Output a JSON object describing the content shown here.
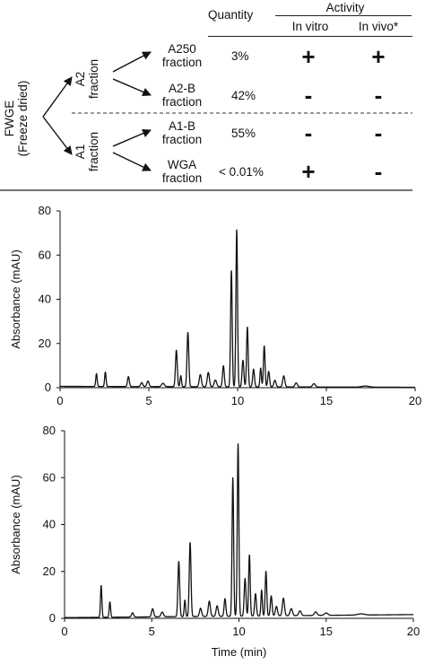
{
  "table": {
    "activity_header": "Activity",
    "quantity_header": "Quantity",
    "in_vitro_header": "In vitro",
    "in_vivo_header": "In vivo*",
    "root_label_line1": "FWGE",
    "root_label_line2": "(Freeze dried)",
    "branch_a2_line1": "A2",
    "branch_a2_line2": "fraction",
    "branch_a1_line1": "A1",
    "branch_a1_line2": "fraction",
    "rows": [
      {
        "line1": "A250",
        "line2": "fraction",
        "quantity": "3%",
        "in_vitro": "+",
        "in_vivo": "+"
      },
      {
        "line1": "A2-B",
        "line2": "fraction",
        "quantity": "42%",
        "in_vitro": "-",
        "in_vivo": "-"
      },
      {
        "line1": "A1-B",
        "line2": "fraction",
        "quantity": "55%",
        "in_vitro": "-",
        "in_vivo": "-"
      },
      {
        "line1": "WGA",
        "line2": "fraction",
        "quantity": "< 0.01%",
        "in_vitro": "+",
        "in_vivo": "-"
      }
    ]
  },
  "chart_data": [
    {
      "type": "line",
      "ylabel": "Absorbance (mAU)",
      "xlabel": "",
      "xlim": [
        0,
        20
      ],
      "ylim": [
        0,
        80
      ],
      "xticks": [
        0,
        5,
        10,
        15,
        20
      ],
      "yticks": [
        0,
        20,
        40,
        60,
        80
      ],
      "baseline": [
        [
          0,
          0.6
        ],
        [
          20,
          0.2
        ]
      ],
      "peaks": [
        {
          "x": 2.05,
          "h": 5.8,
          "w": 0.04
        },
        {
          "x": 2.55,
          "h": 6.5,
          "w": 0.04
        },
        {
          "x": 3.85,
          "h": 4.5,
          "w": 0.05
        },
        {
          "x": 4.6,
          "h": 1.8,
          "w": 0.06
        },
        {
          "x": 4.95,
          "h": 2.5,
          "w": 0.06
        },
        {
          "x": 5.8,
          "h": 1.5,
          "w": 0.08
        },
        {
          "x": 6.55,
          "h": 16.5,
          "w": 0.05
        },
        {
          "x": 6.8,
          "h": 5.0,
          "w": 0.04
        },
        {
          "x": 7.2,
          "h": 24.5,
          "w": 0.05
        },
        {
          "x": 7.9,
          "h": 5.5,
          "w": 0.06
        },
        {
          "x": 8.35,
          "h": 6.5,
          "w": 0.06
        },
        {
          "x": 8.75,
          "h": 3.0,
          "w": 0.07
        },
        {
          "x": 9.2,
          "h": 9.5,
          "w": 0.05
        },
        {
          "x": 9.65,
          "h": 52.5,
          "w": 0.045
        },
        {
          "x": 9.95,
          "h": 71.0,
          "w": 0.045
        },
        {
          "x": 10.3,
          "h": 12.0,
          "w": 0.05
        },
        {
          "x": 10.55,
          "h": 27.0,
          "w": 0.045
        },
        {
          "x": 10.9,
          "h": 8.0,
          "w": 0.05
        },
        {
          "x": 11.3,
          "h": 8.5,
          "w": 0.04
        },
        {
          "x": 11.5,
          "h": 18.5,
          "w": 0.045
        },
        {
          "x": 11.75,
          "h": 7.0,
          "w": 0.05
        },
        {
          "x": 12.1,
          "h": 3.0,
          "w": 0.06
        },
        {
          "x": 12.6,
          "h": 5.0,
          "w": 0.06
        },
        {
          "x": 13.3,
          "h": 1.8,
          "w": 0.07
        },
        {
          "x": 14.3,
          "h": 1.5,
          "w": 0.08
        },
        {
          "x": 17.2,
          "h": 0.5,
          "w": 0.2
        }
      ]
    },
    {
      "type": "line",
      "ylabel": "Absorbance (mAU)",
      "xlabel": "Time (min)",
      "xlim": [
        0,
        20
      ],
      "ylim": [
        0,
        80
      ],
      "xticks": [
        0,
        5,
        10,
        15,
        20
      ],
      "yticks": [
        0,
        20,
        40,
        60,
        80
      ],
      "baseline": [
        [
          0,
          0.3
        ],
        [
          20,
          1.6
        ]
      ],
      "peaks": [
        {
          "x": 2.1,
          "h": 13.5,
          "w": 0.04
        },
        {
          "x": 2.6,
          "h": 6.5,
          "w": 0.04
        },
        {
          "x": 3.9,
          "h": 1.8,
          "w": 0.06
        },
        {
          "x": 5.05,
          "h": 3.5,
          "w": 0.06
        },
        {
          "x": 5.6,
          "h": 2.0,
          "w": 0.07
        },
        {
          "x": 6.55,
          "h": 23.5,
          "w": 0.05
        },
        {
          "x": 6.9,
          "h": 7.0,
          "w": 0.04
        },
        {
          "x": 7.2,
          "h": 31.5,
          "w": 0.05
        },
        {
          "x": 7.8,
          "h": 3.5,
          "w": 0.06
        },
        {
          "x": 8.3,
          "h": 6.5,
          "w": 0.06
        },
        {
          "x": 8.75,
          "h": 4.5,
          "w": 0.06
        },
        {
          "x": 9.2,
          "h": 7.5,
          "w": 0.05
        },
        {
          "x": 9.65,
          "h": 59.0,
          "w": 0.045
        },
        {
          "x": 9.95,
          "h": 73.5,
          "w": 0.045
        },
        {
          "x": 10.35,
          "h": 16.0,
          "w": 0.05
        },
        {
          "x": 10.6,
          "h": 26.0,
          "w": 0.045
        },
        {
          "x": 10.95,
          "h": 9.5,
          "w": 0.05
        },
        {
          "x": 11.3,
          "h": 11.0,
          "w": 0.04
        },
        {
          "x": 11.55,
          "h": 19.0,
          "w": 0.045
        },
        {
          "x": 11.85,
          "h": 8.5,
          "w": 0.05
        },
        {
          "x": 12.15,
          "h": 4.0,
          "w": 0.06
        },
        {
          "x": 12.55,
          "h": 7.5,
          "w": 0.06
        },
        {
          "x": 13.0,
          "h": 3.0,
          "w": 0.07
        },
        {
          "x": 13.5,
          "h": 2.0,
          "w": 0.07
        },
        {
          "x": 14.4,
          "h": 1.5,
          "w": 0.08
        },
        {
          "x": 15.0,
          "h": 1.0,
          "w": 0.1
        },
        {
          "x": 17.0,
          "h": 0.5,
          "w": 0.2
        }
      ]
    }
  ]
}
